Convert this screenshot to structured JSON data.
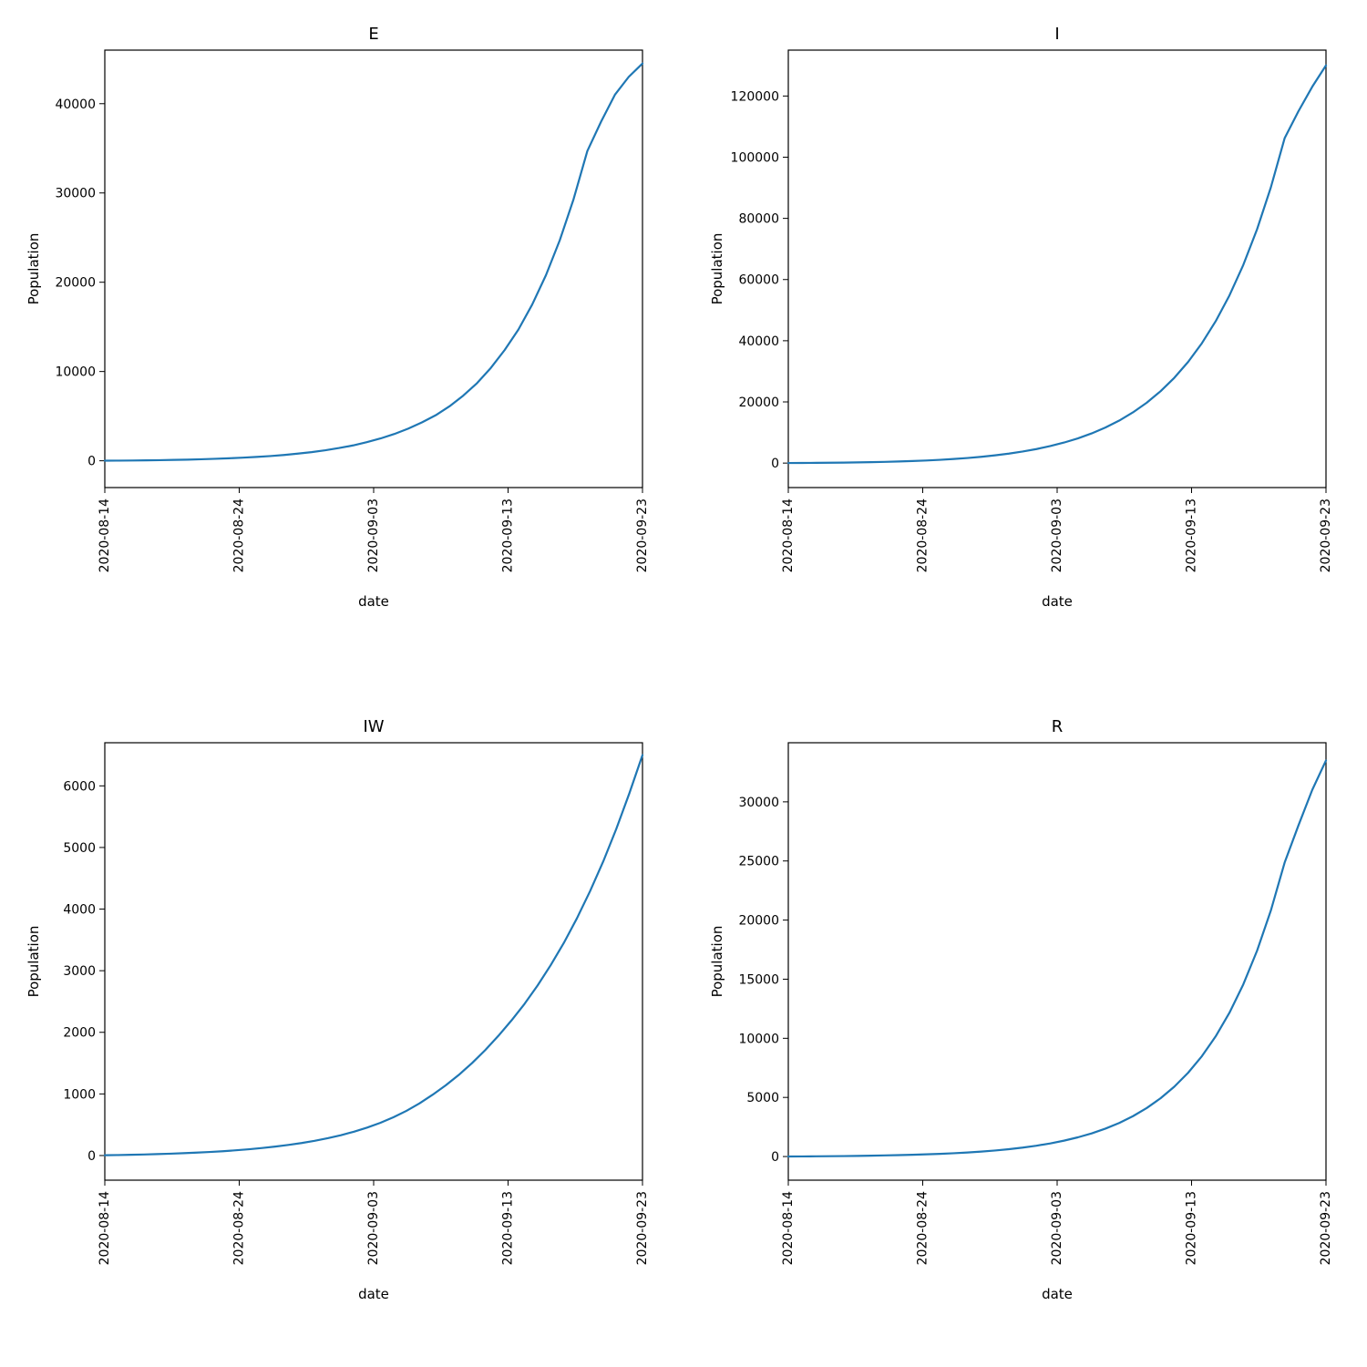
{
  "global": {
    "background_color": "#ffffff",
    "line_color": "#1f77b4",
    "line_width": 2.2,
    "axis_color": "#000000",
    "tick_color": "#000000",
    "axis_line_width": 1.2,
    "title_fontsize": 18,
    "label_fontsize": 15,
    "tick_fontsize": 14,
    "xlabel": "date",
    "ylabel": "Population",
    "x_categories": [
      "2020-08-14",
      "2020-08-24",
      "2020-09-03",
      "2020-09-13",
      "2020-09-23"
    ]
  },
  "panels": [
    {
      "title": "E",
      "ylim": [
        -3000,
        46000
      ],
      "yticks": [
        0,
        10000,
        20000,
        30000,
        40000
      ],
      "data": [
        10,
        20,
        30,
        50,
        70,
        100,
        130,
        170,
        220,
        280,
        350,
        430,
        530,
        650,
        800,
        970,
        1180,
        1430,
        1720,
        2080,
        2500,
        3000,
        3600,
        4300,
        5100,
        6100,
        7300,
        8700,
        10400,
        12400,
        14700,
        17500,
        20800,
        24700,
        29300,
        34700,
        38000,
        41000,
        43000,
        44500
      ]
    },
    {
      "title": "I",
      "ylim": [
        -8000,
        135000
      ],
      "yticks": [
        0,
        20000,
        40000,
        60000,
        80000,
        100000,
        120000
      ],
      "data": [
        20,
        40,
        70,
        110,
        160,
        220,
        300,
        400,
        520,
        670,
        850,
        1070,
        1340,
        1670,
        2060,
        2530,
        3100,
        3780,
        4590,
        5560,
        6710,
        8080,
        9700,
        11620,
        13890,
        16580,
        19750,
        23490,
        27890,
        33080,
        39190,
        46380,
        54830,
        64760,
        76430,
        90130,
        106200,
        115000,
        123000,
        130000
      ]
    },
    {
      "title": "IW",
      "ylim": [
        -400,
        6700
      ],
      "yticks": [
        0,
        1000,
        2000,
        3000,
        4000,
        5000,
        6000
      ],
      "data": [
        5,
        8,
        12,
        17,
        23,
        30,
        38,
        47,
        58,
        70,
        85,
        102,
        122,
        145,
        172,
        203,
        239,
        281,
        330,
        387,
        453,
        530,
        620,
        725,
        847,
        987,
        1140,
        1310,
        1500,
        1710,
        1940,
        2190,
        2460,
        2760,
        3090,
        3450,
        3850,
        4290,
        4770,
        5300,
        5880,
        6500
      ]
    },
    {
      "title": "R",
      "ylim": [
        -2000,
        35000
      ],
      "yticks": [
        0,
        5000,
        10000,
        15000,
        20000,
        25000,
        30000
      ],
      "data": [
        5,
        10,
        18,
        28,
        40,
        55,
        73,
        95,
        120,
        150,
        185,
        228,
        280,
        342,
        418,
        510,
        621,
        755,
        917,
        1110,
        1343,
        1623,
        1958,
        2359,
        2840,
        3415,
        4104,
        4927,
        5910,
        7085,
        8489,
        10165,
        12166,
        14556,
        17406,
        20806,
        24860,
        28000,
        31000,
        33500
      ]
    }
  ]
}
